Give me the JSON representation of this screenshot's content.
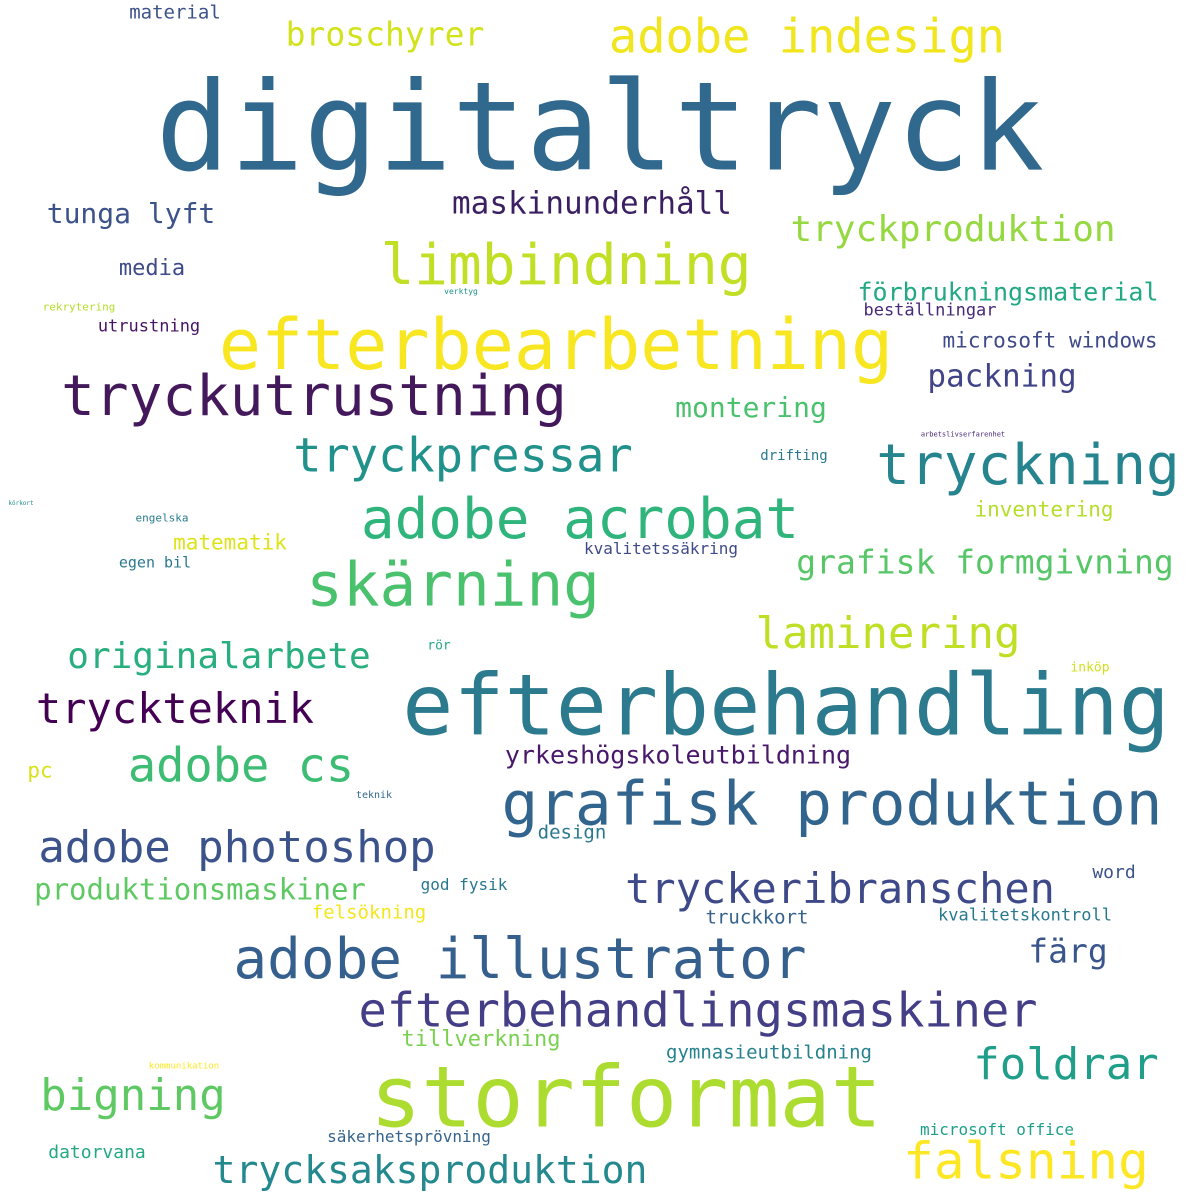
{
  "words": [
    {
      "text": "digitaltryck",
      "color": "#31688e"
    },
    {
      "text": "efterbehandling",
      "color": "#2c7a8e"
    },
    {
      "text": "storformat",
      "color": "#addc30"
    },
    {
      "text": "efterbearbetning",
      "color": "#f8e621"
    },
    {
      "text": "grafisk produktion",
      "color": "#32658e"
    },
    {
      "text": "tryckutrustning",
      "color": "#44195b"
    },
    {
      "text": "skärning",
      "color": "#4ac16d"
    },
    {
      "text": "tryckning",
      "color": "#25848e"
    },
    {
      "text": "limbindning",
      "color": "#c0df25"
    },
    {
      "text": "adobe illustrator",
      "color": "#355f8d"
    },
    {
      "text": "adobe acrobat",
      "color": "#2fb47c"
    },
    {
      "text": "efterbehandlingsmaskiner",
      "color": "#433e85"
    },
    {
      "text": "adobe indesign",
      "color": "#f1e51d"
    },
    {
      "text": "tryckpressar",
      "color": "#21918c"
    },
    {
      "text": "adobe photoshop",
      "color": "#3b528b"
    },
    {
      "text": "adobe cs",
      "color": "#3dbc74"
    },
    {
      "text": "laminering",
      "color": "#bfdf25"
    },
    {
      "text": "tryckeribranschen",
      "color": "#3e4989"
    },
    {
      "text": "tryckteknik",
      "color": "#440154"
    },
    {
      "text": "falsning",
      "color": "#fde725"
    },
    {
      "text": "foldrar",
      "color": "#1f9e89"
    },
    {
      "text": "bigning",
      "color": "#5ec962"
    },
    {
      "text": "trycksaksproduktion",
      "color": "#23898e"
    },
    {
      "text": "originalarbete",
      "color": "#29af7f"
    },
    {
      "text": "tryckproduktion",
      "color": "#95d840"
    },
    {
      "text": "grafisk formgivning",
      "color": "#56c667"
    },
    {
      "text": "broschyrer",
      "color": "#d2e21b"
    },
    {
      "text": "färg",
      "color": "#39558c"
    },
    {
      "text": "produktionsmaskiner",
      "color": "#5ec962"
    },
    {
      "text": "maskinunderhåll",
      "color": "#3b1f63"
    },
    {
      "text": "packning",
      "color": "#414487"
    },
    {
      "text": "tunga lyft",
      "color": "#3b528b"
    },
    {
      "text": "montering",
      "color": "#4ac16d"
    },
    {
      "text": "yrkeshögskoleutbildning",
      "color": "#48186a"
    },
    {
      "text": "förbrukningsmaterial",
      "color": "#22a884"
    },
    {
      "text": "microsoft windows",
      "color": "#3e4a89"
    },
    {
      "text": "media",
      "color": "#3e4a89"
    },
    {
      "text": "matematik",
      "color": "#dde318"
    },
    {
      "text": "inventering",
      "color": "#b5de2b"
    },
    {
      "text": "tillverkning",
      "color": "#7ad151"
    },
    {
      "text": "gymnasieutbildning",
      "color": "#26828e"
    },
    {
      "text": "material",
      "color": "#3b528b"
    },
    {
      "text": "utrustning",
      "color": "#471365"
    },
    {
      "text": "beställningar",
      "color": "#482878"
    },
    {
      "text": "kvalitetskontroll",
      "color": "#2a788e"
    },
    {
      "text": "truckkort",
      "color": "#33638d"
    },
    {
      "text": "god fysik",
      "color": "#2a788e"
    },
    {
      "text": "felsökning",
      "color": "#f4e61e"
    },
    {
      "text": "säkerhetsprövning",
      "color": "#33638d"
    },
    {
      "text": "datorvana",
      "color": "#22a884"
    },
    {
      "text": "microsoft office",
      "color": "#1f9e89"
    },
    {
      "text": "kvalitetssäkring",
      "color": "#3e4a89"
    },
    {
      "text": "drifting",
      "color": "#2a788e"
    },
    {
      "text": "pc",
      "color": "#d8e219"
    },
    {
      "text": "word",
      "color": "#3b528b"
    },
    {
      "text": "design",
      "color": "#2a788e"
    },
    {
      "text": "egen bil",
      "color": "#2a788e"
    },
    {
      "text": "engelska",
      "color": "#287c8e"
    },
    {
      "text": "rör",
      "color": "#22a884"
    },
    {
      "text": "inköp",
      "color": "#d0e11c"
    },
    {
      "text": "teknik",
      "color": "#31688e"
    },
    {
      "text": "rekrytering",
      "color": "#b5de2b"
    },
    {
      "text": "verktyg",
      "color": "#21918c"
    },
    {
      "text": "kommunikation",
      "color": "#fde725"
    },
    {
      "text": "arbetslivserfarenhet",
      "color": "#482878"
    },
    {
      "text": "körkort",
      "color": "#21918c"
    }
  ]
}
